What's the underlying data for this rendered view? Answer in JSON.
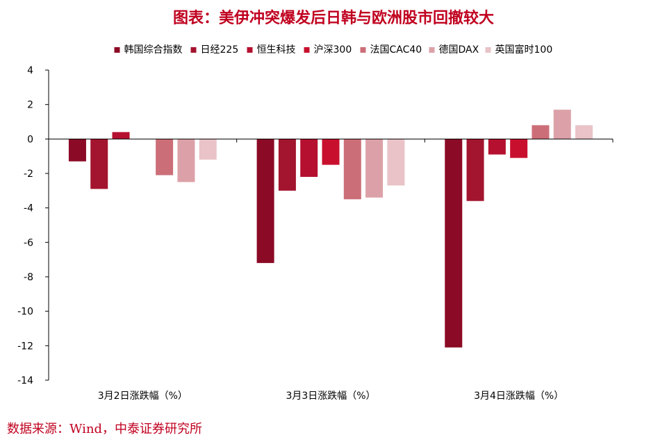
{
  "title": "图表：美伊冲突爆发后日韩与欧洲股市回撤较大",
  "source": "数据来源：Wind，中泰证券研究所",
  "chart_data": {
    "type": "bar",
    "categories": [
      "3月2日涨跌幅（%）",
      "3月3日涨跌幅（%）",
      "3月4日涨跌幅（%）"
    ],
    "ylim": [
      -14,
      4
    ],
    "yticks": [
      4,
      2,
      0,
      -2,
      -4,
      -6,
      -8,
      -10,
      -12,
      -14
    ],
    "legend_position": "top",
    "grid": false,
    "series": [
      {
        "name": "韩国综合指数",
        "color": "#8b0a25",
        "values": [
          -1.3,
          -7.2,
          -12.1
        ]
      },
      {
        "name": "日经225",
        "color": "#a3142e",
        "values": [
          -2.9,
          -3.0,
          -3.6
        ]
      },
      {
        "name": "恒生科技",
        "color": "#b5102f",
        "values": [
          0.4,
          -2.2,
          -0.9
        ]
      },
      {
        "name": "沪深300",
        "color": "#c8102e",
        "values": [
          null,
          -1.5,
          -1.1
        ]
      },
      {
        "name": "法国CAC40",
        "color": "#cc6e78",
        "values": [
          -2.1,
          -3.5,
          0.8
        ]
      },
      {
        "name": "德国DAX",
        "color": "#dca1a8",
        "values": [
          -2.5,
          -3.4,
          1.7
        ]
      },
      {
        "name": "英国富时100",
        "color": "#e9c3c7",
        "values": [
          -1.2,
          -2.7,
          0.8
        ]
      }
    ]
  }
}
